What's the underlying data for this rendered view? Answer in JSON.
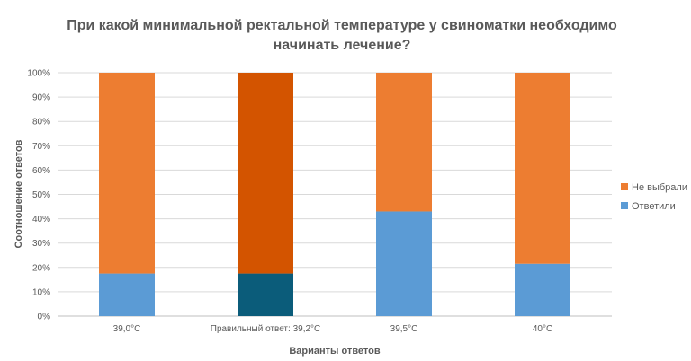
{
  "chart_data": {
    "type": "bar",
    "stacked": true,
    "title": "При какой минимальной ректальной температуре у свиноматки необходимо начинать лечение?",
    "xlabel": "Варианты ответов",
    "ylabel": "Соотношение ответов",
    "ylim": [
      0,
      100
    ],
    "y_ticks": [
      "0%",
      "10%",
      "20%",
      "30%",
      "40%",
      "50%",
      "60%",
      "70%",
      "80%",
      "90%",
      "100%"
    ],
    "grid": true,
    "legend_position": "right",
    "categories": [
      "39,0°C",
      "Правильный ответ: 39,2°C",
      "39,5°C",
      "40°C"
    ],
    "series": [
      {
        "name": "Ответили",
        "color": "#5B9BD5",
        "values": [
          17.5,
          17.5,
          43,
          21.5
        ],
        "point_colors": [
          "#5B9BD5",
          "#0B5C7A",
          "#5B9BD5",
          "#5B9BD5"
        ]
      },
      {
        "name": "Не выбрали",
        "color": "#ED7D31",
        "values": [
          82.5,
          82.5,
          57,
          78.5
        ],
        "point_colors": [
          "#ED7D31",
          "#D35400",
          "#ED7D31",
          "#ED7D31"
        ]
      }
    ]
  }
}
